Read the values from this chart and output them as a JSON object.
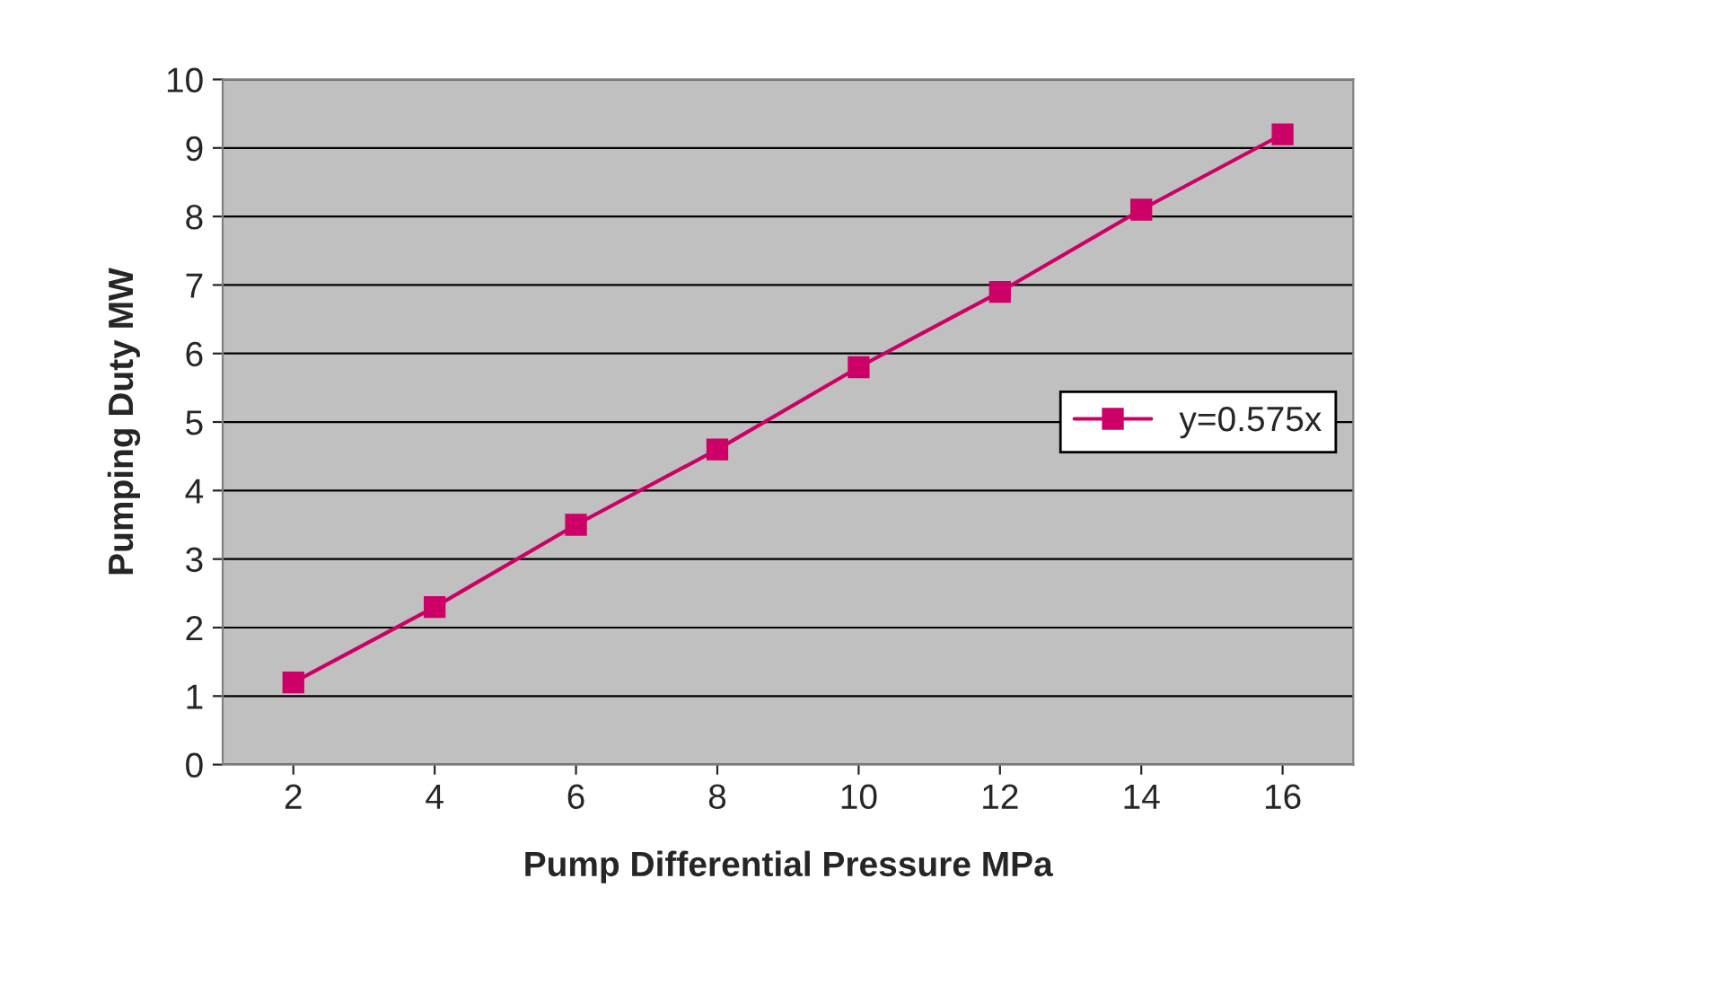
{
  "chart_data": {
    "type": "line",
    "xlabel": "Pump Differential Pressure MPa",
    "ylabel": "Pumping Duty MW",
    "categories": [
      "2",
      "4",
      "6",
      "8",
      "10",
      "12",
      "14",
      "16"
    ],
    "series": [
      {
        "name": "y=0.575x",
        "color": "#cc0066",
        "values": [
          1.2,
          2.3,
          3.5,
          4.6,
          5.8,
          6.9,
          8.1,
          9.2
        ]
      }
    ],
    "ylim": [
      0,
      10
    ],
    "yticks": [
      0,
      1,
      2,
      3,
      4,
      5,
      6,
      7,
      8,
      9,
      10
    ],
    "grid": "y",
    "legend": "right",
    "marker": "square",
    "line_style": "solid"
  }
}
